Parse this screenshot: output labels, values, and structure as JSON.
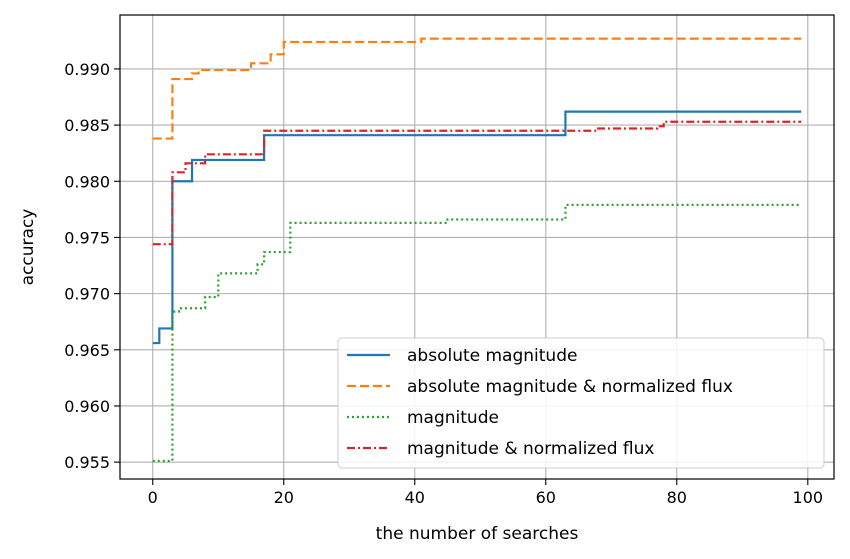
{
  "chart_data": {
    "type": "line",
    "title": "",
    "xlabel": "the number of searches",
    "ylabel": "accuracy",
    "xlim": [
      -5,
      104
    ],
    "ylim": [
      0.9535,
      0.9948
    ],
    "xticks": [
      0,
      20,
      40,
      60,
      80,
      100
    ],
    "xtick_labels": [
      "0",
      "20",
      "40",
      "60",
      "80",
      "100"
    ],
    "yticks": [
      0.955,
      0.96,
      0.965,
      0.97,
      0.975,
      0.98,
      0.985,
      0.99
    ],
    "ytick_labels": [
      "0.955",
      "0.960",
      "0.965",
      "0.970",
      "0.975",
      "0.980",
      "0.985",
      "0.990"
    ],
    "grid": true,
    "legend_position": "lower-right",
    "series": [
      {
        "name": "absolute magnitude",
        "color": "#1f77b4",
        "style": "solid",
        "step": true,
        "points": [
          [
            0,
            0.9656
          ],
          [
            1,
            0.9669
          ],
          [
            2,
            0.9669
          ],
          [
            3,
            0.98
          ],
          [
            6,
            0.9819
          ],
          [
            16,
            0.9819
          ],
          [
            17,
            0.9841
          ],
          [
            62,
            0.9841
          ],
          [
            63,
            0.9862
          ],
          [
            99,
            0.9862
          ]
        ]
      },
      {
        "name": "absolute magnitude & normalized flux",
        "color": "#ff7f0e",
        "style": "dashed",
        "step": true,
        "points": [
          [
            0,
            0.9838
          ],
          [
            2,
            0.9838
          ],
          [
            3,
            0.9891
          ],
          [
            6,
            0.9896
          ],
          [
            7,
            0.9899
          ],
          [
            14,
            0.9899
          ],
          [
            15,
            0.9905
          ],
          [
            18,
            0.9913
          ],
          [
            20,
            0.9924
          ],
          [
            40,
            0.9924
          ],
          [
            41,
            0.9927
          ],
          [
            99,
            0.9927
          ]
        ]
      },
      {
        "name": "magnitude",
        "color": "#2ca02c",
        "style": "dotted",
        "step": true,
        "points": [
          [
            0,
            0.9551
          ],
          [
            2,
            0.9551
          ],
          [
            3,
            0.9684
          ],
          [
            4,
            0.9687
          ],
          [
            8,
            0.9697
          ],
          [
            10,
            0.9718
          ],
          [
            14,
            0.9718
          ],
          [
            16,
            0.9726
          ],
          [
            17,
            0.9737
          ],
          [
            20,
            0.9737
          ],
          [
            21,
            0.9763
          ],
          [
            44,
            0.9763
          ],
          [
            45,
            0.9766
          ],
          [
            62,
            0.9766
          ],
          [
            63,
            0.9779
          ],
          [
            99,
            0.9779
          ]
        ]
      },
      {
        "name": "magnitude & normalized flux",
        "color": "#d62728",
        "style": "dashdot",
        "step": true,
        "points": [
          [
            0,
            0.9744
          ],
          [
            2,
            0.9744
          ],
          [
            3,
            0.9808
          ],
          [
            5,
            0.9816
          ],
          [
            8,
            0.9824
          ],
          [
            16,
            0.9824
          ],
          [
            17,
            0.9845
          ],
          [
            63,
            0.9845
          ],
          [
            68,
            0.9847
          ],
          [
            77,
            0.9849
          ],
          [
            78,
            0.9853
          ],
          [
            99,
            0.9853
          ]
        ]
      }
    ]
  }
}
